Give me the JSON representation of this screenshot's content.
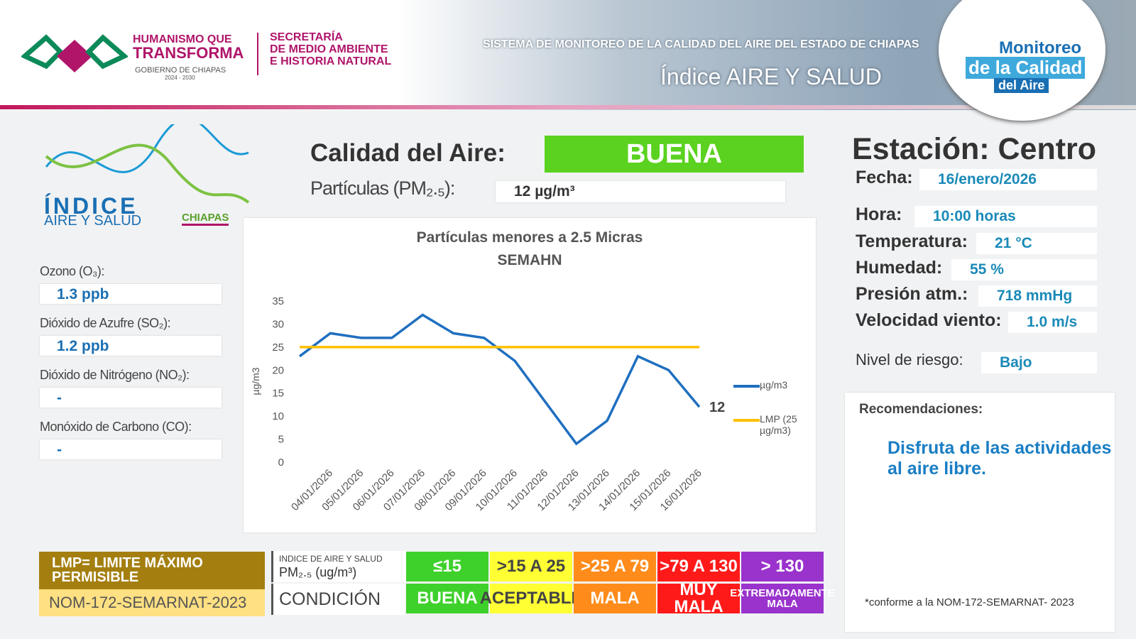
{
  "header": {
    "brand_line1": "HUMANISMO QUE",
    "brand_line2": "TRANSFORMA",
    "government": "GOBIERNO DE CHIAPAS",
    "period": "2024 - 2030",
    "secretariat_line1": "SECRETARÍA",
    "secretariat_line2": "DE MEDIO AMBIENTE",
    "secretariat_line3": "E HISTORIA NATURAL",
    "system": "SISTEMA DE MONITOREO DE LA CALIDAD DEL AIRE DEL ESTADO DE CHIAPAS",
    "index_title": "Índice AIRE Y SALUD",
    "badge_line1": "Monitoreo",
    "badge_line2": "de la Calidad",
    "badge_line3": "del Aire"
  },
  "logo": {
    "line1": "ÍNDICE",
    "line2": "AIRE Y SALUD",
    "line3": "CHIAPAS"
  },
  "pollutants": [
    {
      "label": "Ozono (O₃):",
      "value": "1.3 ppb"
    },
    {
      "label": "Dióxido de Azufre (SO₂):",
      "value": "1.2 ppb"
    },
    {
      "label": "Dióxido de Nitrógeno (NO₂):",
      "value": "-"
    },
    {
      "label": "Monóxido de Carbono (CO):",
      "value": "-"
    }
  ],
  "quality": {
    "label": "Calidad del Aire:",
    "value": "BUENA",
    "pm_label": "Partículas (PM₂.₅):",
    "pm_value": "12 µg/m³"
  },
  "station": {
    "title": "Estación: Centro",
    "fields": [
      {
        "label": "Fecha:",
        "value": "16/enero/2026"
      },
      {
        "label": "Hora:",
        "value": "10:00 horas"
      },
      {
        "label": "Temperatura:",
        "value": "21 °C"
      },
      {
        "label": "Humedad:",
        "value": "55 %"
      },
      {
        "label": "Presión atm.:",
        "value": "718 mmHg"
      },
      {
        "label": "Velocidad viento:",
        "value": "1.0 m/s"
      },
      {
        "label": "Nivel de riesgo:",
        "value": "Bajo"
      }
    ],
    "recommendations_label": "Recomendaciones:",
    "recommendation": "Disfruta de las actividades al aire libre.",
    "note": "*conforme a la NOM-172-SEMARNAT- 2023"
  },
  "legend_table": {
    "lmp": "LMP= LIMITE MÁXIMO PERMISIBLE",
    "norm": "NOM-172-SEMARNAT-2023",
    "index_label": "INDICE DE AIRE Y SALUD",
    "unit_label": "PM₂.₅ (ug/m³)",
    "condition_label": "CONDICIÓN",
    "levels": [
      {
        "range": "≤15",
        "condition": "BUENA",
        "color": "#3ed12b"
      },
      {
        "range": ">15 A 25",
        "condition": "ACEPTABLE",
        "color": "#ffff33"
      },
      {
        "range": ">25 A 79",
        "condition": "MALA",
        "color": "#ff8c1a"
      },
      {
        "range": ">79 A 130",
        "condition": "MUY MALA",
        "color": "#ff1a1a"
      },
      {
        "range": "> 130",
        "condition": "EXTREMADAMENTE MALA",
        "color": "#9933cc"
      }
    ]
  },
  "chart_data": {
    "type": "line",
    "title": "Partículas menores a 2.5 Micras",
    "subtitle": "SEMAHN",
    "y_label": "µg/m3",
    "categories": [
      null,
      "04/01/2026",
      "05/01/2026",
      "06/01/2026",
      "07/01/2026",
      "08/01/2026",
      "09/01/2026",
      "10/01/2026",
      "11/01/2026",
      "12/01/2026",
      "13/01/2026",
      "14/01/2026",
      "15/01/2026",
      "16/01/2026"
    ],
    "series": [
      {
        "name": "µg/m3",
        "color": "#1f6fc0",
        "values": [
          23,
          28,
          27,
          27,
          32,
          28,
          27,
          22,
          13,
          4,
          9,
          23,
          20,
          12
        ]
      },
      {
        "name": "LMP (25 µg/m3)",
        "color": "#ffc000",
        "values": [
          25,
          25,
          25,
          25,
          25,
          25,
          25,
          25,
          25,
          25,
          25,
          25,
          25,
          25
        ]
      }
    ],
    "ylim": [
      0,
      35
    ],
    "yticks": [
      0,
      5,
      10,
      15,
      20,
      25,
      30,
      35
    ],
    "grid": false
  }
}
